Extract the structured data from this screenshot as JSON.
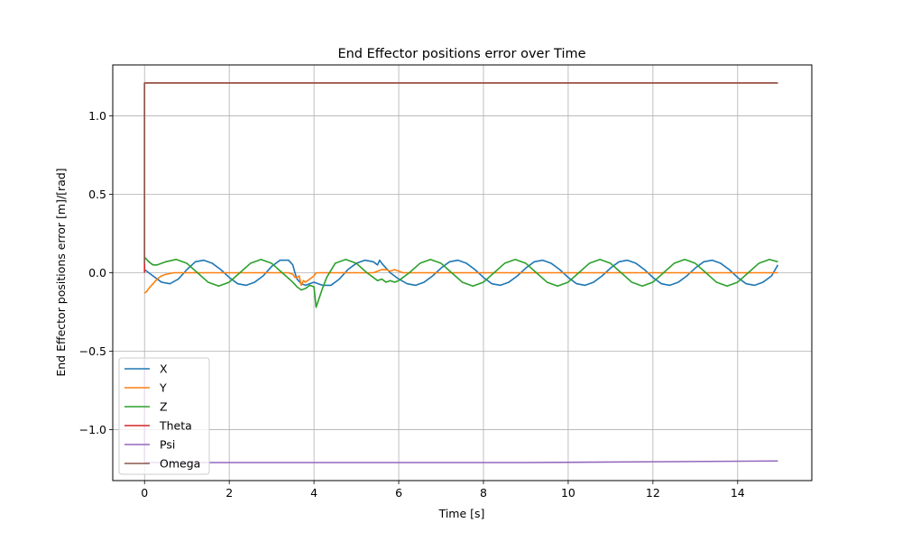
{
  "chart_data": {
    "type": "line",
    "title": "End Effector positions error over Time",
    "xlabel": "Time [s]",
    "ylabel": "End Effector positions error [m]/[rad]",
    "xlim": [
      -0.75,
      15.75
    ],
    "ylim": [
      -1.325,
      1.325
    ],
    "xticks": [
      0,
      2,
      4,
      6,
      8,
      10,
      12,
      14
    ],
    "xtick_labels": [
      "0",
      "2",
      "4",
      "6",
      "8",
      "10",
      "12",
      "14"
    ],
    "yticks": [
      -1.0,
      -0.5,
      0.0,
      0.5,
      1.0
    ],
    "ytick_labels": [
      "−1.0",
      "−0.5",
      "0.0",
      "0.5",
      "1.0"
    ],
    "grid": true,
    "legend_position": "lower-left",
    "series": [
      {
        "name": "X",
        "color": "#1f77b4",
        "x": [
          0.0,
          0.2,
          0.4,
          0.6,
          0.8,
          1.0,
          1.2,
          1.4,
          1.6,
          1.8,
          2.0,
          2.2,
          2.4,
          2.6,
          2.8,
          3.0,
          3.2,
          3.4,
          3.5,
          3.55,
          3.6,
          3.7,
          3.8,
          3.9,
          4.0,
          4.2,
          4.4,
          4.6,
          4.8,
          5.0,
          5.2,
          5.4,
          5.5,
          5.55,
          5.6,
          5.7,
          5.8,
          6.0,
          6.2,
          6.4,
          6.6,
          6.8,
          7.0,
          7.2,
          7.4,
          7.6,
          7.8,
          8.0,
          8.2,
          8.4,
          8.6,
          8.8,
          9.0,
          9.2,
          9.4,
          9.6,
          9.8,
          10.0,
          10.2,
          10.4,
          10.6,
          10.8,
          11.0,
          11.2,
          11.4,
          11.6,
          11.8,
          12.0,
          12.2,
          12.4,
          12.6,
          12.8,
          13.0,
          13.2,
          13.4,
          13.6,
          13.8,
          14.0,
          14.2,
          14.4,
          14.6,
          14.8,
          14.95
        ],
        "y": [
          0.02,
          -0.02,
          -0.06,
          -0.07,
          -0.04,
          0.02,
          0.07,
          0.08,
          0.06,
          0.02,
          -0.03,
          -0.07,
          -0.08,
          -0.06,
          -0.02,
          0.04,
          0.08,
          0.08,
          0.05,
          0.0,
          -0.04,
          -0.07,
          -0.08,
          -0.07,
          -0.06,
          -0.08,
          -0.08,
          -0.04,
          0.02,
          0.06,
          0.08,
          0.07,
          0.05,
          0.08,
          0.06,
          0.03,
          0.0,
          -0.04,
          -0.07,
          -0.08,
          -0.06,
          -0.02,
          0.03,
          0.07,
          0.08,
          0.06,
          0.02,
          -0.03,
          -0.07,
          -0.08,
          -0.06,
          -0.02,
          0.03,
          0.07,
          0.08,
          0.06,
          0.02,
          -0.03,
          -0.07,
          -0.08,
          -0.06,
          -0.02,
          0.03,
          0.07,
          0.08,
          0.06,
          0.02,
          -0.03,
          -0.07,
          -0.08,
          -0.06,
          -0.02,
          0.03,
          0.07,
          0.08,
          0.06,
          0.02,
          -0.03,
          -0.07,
          -0.08,
          -0.06,
          -0.02,
          0.05
        ]
      },
      {
        "name": "Y",
        "color": "#ff7f0e",
        "x": [
          0.0,
          0.05,
          0.1,
          0.2,
          0.3,
          0.4,
          0.5,
          0.7,
          1.0,
          2.0,
          3.0,
          3.4,
          3.5,
          3.55,
          3.6,
          3.65,
          3.7,
          3.75,
          3.8,
          3.9,
          4.0,
          4.05,
          4.1,
          4.2,
          5.0,
          5.4,
          5.5,
          5.6,
          5.7,
          5.8,
          5.9,
          6.0,
          6.1,
          6.3,
          6.6,
          7.0,
          8.0,
          9.0,
          10.0,
          11.0,
          12.0,
          13.0,
          14.0,
          14.95
        ],
        "y": [
          -0.13,
          -0.12,
          -0.1,
          -0.07,
          -0.04,
          -0.02,
          -0.01,
          0.0,
          0.0,
          0.0,
          0.0,
          0.0,
          -0.01,
          -0.03,
          -0.03,
          -0.02,
          -0.08,
          -0.05,
          -0.06,
          -0.04,
          -0.02,
          0.0,
          0.0,
          0.0,
          0.0,
          0.0,
          0.01,
          0.02,
          0.02,
          0.01,
          0.02,
          0.01,
          0.0,
          0.0,
          0.0,
          0.0,
          0.0,
          0.0,
          0.0,
          0.0,
          0.0,
          0.0,
          0.0,
          0.0
        ]
      },
      {
        "name": "Z",
        "color": "#2ca02c",
        "x": [
          0.0,
          0.1,
          0.2,
          0.3,
          0.5,
          0.75,
          1.0,
          1.25,
          1.5,
          1.75,
          2.0,
          2.25,
          2.5,
          2.75,
          3.0,
          3.25,
          3.5,
          3.6,
          3.7,
          3.8,
          3.9,
          4.0,
          4.05,
          4.1,
          4.2,
          4.3,
          4.5,
          4.75,
          5.0,
          5.25,
          5.5,
          5.6,
          5.7,
          5.8,
          5.9,
          6.0,
          6.25,
          6.5,
          6.75,
          7.0,
          7.25,
          7.5,
          7.75,
          8.0,
          8.25,
          8.5,
          8.75,
          9.0,
          9.25,
          9.5,
          9.75,
          10.0,
          10.25,
          10.5,
          10.75,
          11.0,
          11.25,
          11.5,
          11.75,
          12.0,
          12.25,
          12.5,
          12.75,
          13.0,
          13.25,
          13.5,
          13.75,
          14.0,
          14.25,
          14.5,
          14.75,
          14.95
        ],
        "y": [
          0.1,
          0.07,
          0.05,
          0.05,
          0.07,
          0.085,
          0.06,
          0.0,
          -0.06,
          -0.085,
          -0.06,
          0.0,
          0.06,
          0.085,
          0.06,
          0.0,
          -0.06,
          -0.09,
          -0.11,
          -0.1,
          -0.08,
          -0.09,
          -0.22,
          -0.18,
          -0.1,
          -0.03,
          0.06,
          0.085,
          0.06,
          0.0,
          -0.05,
          -0.04,
          -0.06,
          -0.05,
          -0.06,
          -0.05,
          0.0,
          0.06,
          0.085,
          0.06,
          0.0,
          -0.06,
          -0.085,
          -0.06,
          0.0,
          0.06,
          0.085,
          0.06,
          0.0,
          -0.06,
          -0.085,
          -0.06,
          0.0,
          0.06,
          0.085,
          0.06,
          0.0,
          -0.06,
          -0.085,
          -0.06,
          0.0,
          0.06,
          0.085,
          0.06,
          0.0,
          -0.06,
          -0.085,
          -0.06,
          0.0,
          0.06,
          0.085,
          0.07
        ]
      },
      {
        "name": "Theta",
        "color": "#d62728",
        "x": [
          0.0,
          0.0,
          0.03,
          14.95
        ],
        "y": [
          0.0,
          1.21,
          1.21,
          1.21
        ]
      },
      {
        "name": "Psi",
        "color": "#9467bd",
        "x": [
          0.0,
          0.0,
          0.03,
          3.0,
          6.0,
          9.0,
          12.0,
          14.95
        ],
        "y": [
          -0.55,
          -1.21,
          -1.21,
          -1.21,
          -1.21,
          -1.21,
          -1.205,
          -1.2
        ]
      },
      {
        "name": "Omega",
        "color": "#8c564b",
        "x": [
          0.0,
          0.0,
          0.03,
          14.95
        ],
        "y": [
          0.06,
          1.21,
          1.21,
          1.21
        ]
      }
    ]
  }
}
